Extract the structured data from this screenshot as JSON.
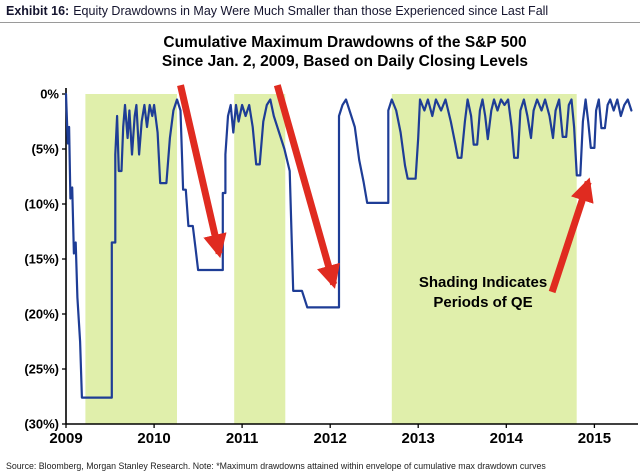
{
  "header": {
    "exhibit_label": "Exhibit 16:",
    "exhibit_title": "Equity Drawdowns in May Were Much Smaller than those Experienced since Last Fall"
  },
  "source_note": "Source: Bloomberg, Morgan Stanley Research. Note: *Maximum drawdowns attained within envelope of cumulative max drawdown curves",
  "chart_data": {
    "type": "line",
    "title": "Cumulative Maximum Drawdowns of the S&P 500 Since Jan. 2, 2009, Based on Daily Closing Levels",
    "title_lines": [
      "Cumulative Maximum Drawdowns of the S&P 500",
      "Since Jan. 2, 2009, Based on Daily Closing Levels"
    ],
    "xlabel": "",
    "ylabel": "",
    "x_range": [
      2009,
      2015.45
    ],
    "y_range": [
      -30,
      0
    ],
    "grid": false,
    "legend": "none",
    "x_ticks": [
      2009,
      2010,
      2011,
      2012,
      2013,
      2014,
      2015
    ],
    "x_tick_labels": [
      "2009",
      "2010",
      "2011",
      "2012",
      "2013",
      "2014",
      "2015"
    ],
    "y_ticks": [
      0,
      -5,
      -10,
      -15,
      -20,
      -25,
      -30
    ],
    "y_tick_labels": [
      "0%",
      "(5%)",
      "(10%)",
      "(15%)",
      "(20%)",
      "(25%)",
      "(30%)"
    ],
    "line_color": "#1e3d96",
    "qe_band_color": "#e0efab",
    "arrow_color": "#e02b20",
    "annotation_lines": [
      "Shading Indicates",
      "Periods of QE"
    ],
    "qe_bands": [
      [
        2009.22,
        2010.26
      ],
      [
        2010.91,
        2011.49
      ],
      [
        2012.7,
        2014.8
      ]
    ],
    "arrows": [
      {
        "from": [
          2010.3,
          0.8
        ],
        "to": [
          2010.74,
          -14.5
        ]
      },
      {
        "from": [
          2011.4,
          0.8
        ],
        "to": [
          2012.04,
          -17.3
        ]
      },
      {
        "from": [
          2014.52,
          -18.0
        ],
        "to": [
          2014.93,
          -8.0
        ]
      }
    ],
    "series": [
      {
        "name": "S&P 500 cumulative maximum drawdown (%)",
        "points": [
          [
            2009.0,
            0
          ],
          [
            2009.02,
            -4.5
          ],
          [
            2009.035,
            -3.0
          ],
          [
            2009.05,
            -9.5
          ],
          [
            2009.07,
            -8.5
          ],
          [
            2009.09,
            -14.5
          ],
          [
            2009.11,
            -13.5
          ],
          [
            2009.13,
            -18.5
          ],
          [
            2009.16,
            -22.5
          ],
          [
            2009.18,
            -27.6
          ],
          [
            2009.52,
            -27.6
          ],
          [
            2009.52,
            -13.5
          ],
          [
            2009.56,
            -13.5
          ],
          [
            2009.56,
            -5.5
          ],
          [
            2009.58,
            -2.0
          ],
          [
            2009.6,
            -7.0
          ],
          [
            2009.63,
            -7.0
          ],
          [
            2009.65,
            -3.0
          ],
          [
            2009.67,
            -1.0
          ],
          [
            2009.7,
            -4.0
          ],
          [
            2009.72,
            -1.5
          ],
          [
            2009.75,
            -5.5
          ],
          [
            2009.78,
            -2.0
          ],
          [
            2009.8,
            -1.0
          ],
          [
            2009.83,
            -5.5
          ],
          [
            2009.86,
            -2.5
          ],
          [
            2009.89,
            -1.0
          ],
          [
            2009.92,
            -3.0
          ],
          [
            2009.95,
            -1.0
          ],
          [
            2009.98,
            -2.0
          ],
          [
            2010.0,
            -1.0
          ],
          [
            2010.04,
            -3.5
          ],
          [
            2010.07,
            -8.1
          ],
          [
            2010.14,
            -8.1
          ],
          [
            2010.18,
            -4.0
          ],
          [
            2010.22,
            -1.5
          ],
          [
            2010.26,
            -0.5
          ],
          [
            2010.3,
            -1.5
          ],
          [
            2010.33,
            -8.7
          ],
          [
            2010.36,
            -8.7
          ],
          [
            2010.39,
            -12.0
          ],
          [
            2010.44,
            -12.0
          ],
          [
            2010.47,
            -14.0
          ],
          [
            2010.5,
            -16.0
          ],
          [
            2010.78,
            -16.0
          ],
          [
            2010.78,
            -9.0
          ],
          [
            2010.81,
            -9.0
          ],
          [
            2010.81,
            -5.5
          ],
          [
            2010.84,
            -2.0
          ],
          [
            2010.87,
            -1.0
          ],
          [
            2010.9,
            -3.5
          ],
          [
            2010.93,
            -1.0
          ],
          [
            2010.96,
            -2.5
          ],
          [
            2011.0,
            -1.0
          ],
          [
            2011.04,
            -2.0
          ],
          [
            2011.08,
            -1.0
          ],
          [
            2011.12,
            -3.0
          ],
          [
            2011.16,
            -6.4
          ],
          [
            2011.2,
            -6.4
          ],
          [
            2011.24,
            -2.5
          ],
          [
            2011.28,
            -1.0
          ],
          [
            2011.32,
            -0.5
          ],
          [
            2011.36,
            -2.0
          ],
          [
            2011.42,
            -3.5
          ],
          [
            2011.48,
            -5.0
          ],
          [
            2011.54,
            -7.0
          ],
          [
            2011.58,
            -17.9
          ],
          [
            2011.68,
            -17.9
          ],
          [
            2011.74,
            -19.4
          ],
          [
            2012.1,
            -19.4
          ],
          [
            2012.1,
            -2.0
          ],
          [
            2012.14,
            -1.0
          ],
          [
            2012.18,
            -0.5
          ],
          [
            2012.24,
            -2.0
          ],
          [
            2012.28,
            -3.0
          ],
          [
            2012.33,
            -6.0
          ],
          [
            2012.38,
            -8.0
          ],
          [
            2012.42,
            -9.9
          ],
          [
            2012.66,
            -9.9
          ],
          [
            2012.66,
            -1.5
          ],
          [
            2012.7,
            -0.5
          ],
          [
            2012.75,
            -1.5
          ],
          [
            2012.8,
            -3.5
          ],
          [
            2012.85,
            -6.5
          ],
          [
            2012.88,
            -7.7
          ],
          [
            2012.97,
            -7.7
          ],
          [
            2013.0,
            -4.0
          ],
          [
            2013.02,
            -0.5
          ],
          [
            2013.07,
            -1.5
          ],
          [
            2013.11,
            -0.5
          ],
          [
            2013.16,
            -2.0
          ],
          [
            2013.2,
            -0.5
          ],
          [
            2013.26,
            -1.5
          ],
          [
            2013.31,
            -0.5
          ],
          [
            2013.37,
            -2.5
          ],
          [
            2013.42,
            -4.5
          ],
          [
            2013.45,
            -5.8
          ],
          [
            2013.49,
            -5.8
          ],
          [
            2013.53,
            -2.5
          ],
          [
            2013.56,
            -0.5
          ],
          [
            2013.6,
            -2.0
          ],
          [
            2013.63,
            -4.6
          ],
          [
            2013.67,
            -4.6
          ],
          [
            2013.7,
            -1.5
          ],
          [
            2013.73,
            -0.5
          ],
          [
            2013.76,
            -2.0
          ],
          [
            2013.79,
            -4.1
          ],
          [
            2013.83,
            -1.5
          ],
          [
            2013.86,
            -0.5
          ],
          [
            2013.9,
            -1.5
          ],
          [
            2013.94,
            -0.5
          ],
          [
            2013.98,
            -1.0
          ],
          [
            2014.02,
            -0.5
          ],
          [
            2014.06,
            -3.0
          ],
          [
            2014.09,
            -5.8
          ],
          [
            2014.13,
            -5.8
          ],
          [
            2014.16,
            -1.5
          ],
          [
            2014.2,
            -0.5
          ],
          [
            2014.24,
            -2.0
          ],
          [
            2014.28,
            -4.0
          ],
          [
            2014.31,
            -1.5
          ],
          [
            2014.35,
            -0.5
          ],
          [
            2014.4,
            -1.5
          ],
          [
            2014.44,
            -0.5
          ],
          [
            2014.49,
            -2.0
          ],
          [
            2014.53,
            -4.0
          ],
          [
            2014.56,
            -1.5
          ],
          [
            2014.6,
            -0.5
          ],
          [
            2014.64,
            -3.9
          ],
          [
            2014.68,
            -3.9
          ],
          [
            2014.71,
            -1.0
          ],
          [
            2014.74,
            -0.5
          ],
          [
            2014.77,
            -3.0
          ],
          [
            2014.8,
            -7.4
          ],
          [
            2014.84,
            -7.4
          ],
          [
            2014.87,
            -2.5
          ],
          [
            2014.9,
            -0.5
          ],
          [
            2014.93,
            -2.5
          ],
          [
            2014.96,
            -4.9
          ],
          [
            2015.0,
            -4.9
          ],
          [
            2015.02,
            -1.5
          ],
          [
            2015.05,
            -0.5
          ],
          [
            2015.08,
            -3.1
          ],
          [
            2015.12,
            -3.1
          ],
          [
            2015.15,
            -1.0
          ],
          [
            2015.18,
            -0.5
          ],
          [
            2015.22,
            -1.5
          ],
          [
            2015.26,
            -0.5
          ],
          [
            2015.3,
            -2.0
          ],
          [
            2015.34,
            -1.0
          ],
          [
            2015.38,
            -0.5
          ],
          [
            2015.42,
            -1.5
          ]
        ]
      }
    ]
  }
}
